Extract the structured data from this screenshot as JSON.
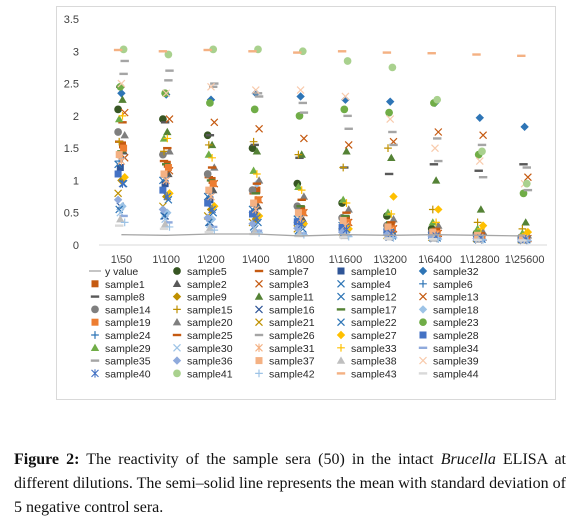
{
  "figure": {
    "caption_label": "Figure 2:",
    "caption_part1": " The reactivity of the sample sera (50) in the intact ",
    "caption_italic": "Brucella",
    "caption_part2": " ELISA at different dilutions. The semi–solid line represents the mean with standard deviation of 5 negative control sera."
  },
  "chart_data": {
    "type": "scatter",
    "title": "",
    "xlabel": "",
    "ylabel": "",
    "ylim": [
      0,
      3.5
    ],
    "yticks": [
      "0",
      "0.5",
      "1",
      "1.5",
      "2",
      "2.5",
      "3",
      "3.5"
    ],
    "grid": false,
    "legend_position": "bottom",
    "categories": [
      "1\\50",
      "1\\100",
      "1\\200",
      "1\\400",
      "1\\800",
      "1\\1600",
      "1\\3200",
      "1\\6400",
      "1\\12800",
      "1\\25600"
    ],
    "line_series": {
      "name": "y value",
      "color": "#a6a6a6",
      "values": [
        0.16,
        0.15,
        0.17,
        0.17,
        0.14,
        0.16,
        0.15,
        0.16,
        0.15,
        0.14
      ]
    },
    "series": [
      {
        "name": "sample5",
        "color": "#375623",
        "marker": "circle",
        "values": [
          2.1,
          1.95,
          1.7,
          1.5,
          0.95,
          0.65,
          0.45,
          0.25,
          0.18,
          0.12
        ]
      },
      {
        "name": "sample7",
        "color": "#c55a11",
        "marker": "dash",
        "values": [
          1.6,
          1.3,
          1.05,
          0.8,
          0.6,
          0.4,
          0.3,
          0.2,
          0.15,
          0.1
        ]
      },
      {
        "name": "sample10",
        "color": "#2f5597",
        "marker": "square",
        "values": [
          1.2,
          0.95,
          0.7,
          0.5,
          0.35,
          0.25,
          0.18,
          0.13,
          0.1,
          0.08
        ]
      },
      {
        "name": "sample32",
        "color": "#2e75b6",
        "marker": "diamond",
        "values": [
          2.35,
          2.33,
          2.25,
          2.35,
          2.3,
          2.25,
          2.22,
          2.2,
          1.97,
          1.83
        ]
      },
      {
        "name": "sample1",
        "color": "#c55a11",
        "marker": "square",
        "values": [
          1.55,
          1.25,
          1.0,
          0.85,
          0.55,
          0.4,
          0.28,
          0.2,
          0.14,
          0.1
        ]
      },
      {
        "name": "sample2",
        "color": "#595959",
        "marker": "triangle",
        "values": [
          1.45,
          1.1,
          0.85,
          0.6,
          0.4,
          0.3,
          0.2,
          0.15,
          0.12,
          0.1
        ]
      },
      {
        "name": "sample3",
        "color": "#c55a11",
        "marker": "x",
        "values": [
          1.35,
          1.15,
          0.95,
          0.7,
          0.5,
          0.35,
          0.25,
          0.18,
          0.12,
          0.1
        ]
      },
      {
        "name": "sample4",
        "color": "#2e75b6",
        "marker": "x",
        "values": [
          1.25,
          1.0,
          0.75,
          0.55,
          0.4,
          0.3,
          0.2,
          0.15,
          0.12,
          0.1
        ]
      },
      {
        "name": "sample6",
        "color": "#2e75b6",
        "marker": "plus",
        "values": [
          1.3,
          1.05,
          0.8,
          0.6,
          0.45,
          0.3,
          0.22,
          0.16,
          0.12,
          0.1
        ]
      },
      {
        "name": "sample8",
        "color": "#595959",
        "marker": "dash",
        "values": [
          2.45,
          1.9,
          1.7,
          1.55,
          1.35,
          1.2,
          1.1,
          1.25,
          1.15,
          1.25
        ]
      },
      {
        "name": "sample9",
        "color": "#bf9000",
        "marker": "diamond",
        "values": [
          1.0,
          0.75,
          0.55,
          0.4,
          0.3,
          0.22,
          0.16,
          0.12,
          0.1,
          0.08
        ]
      },
      {
        "name": "sample11",
        "color": "#548235",
        "marker": "triangle",
        "values": [
          2.25,
          1.75,
          1.55,
          1.45,
          1.4,
          1.45,
          1.35,
          1.0,
          0.55,
          0.35
        ]
      },
      {
        "name": "sample12",
        "color": "#2e75b6",
        "marker": "x",
        "values": [
          0.95,
          0.7,
          0.5,
          0.35,
          0.25,
          0.18,
          0.14,
          0.11,
          0.09,
          0.08
        ]
      },
      {
        "name": "sample13",
        "color": "#c55a11",
        "marker": "x",
        "values": [
          2.05,
          1.95,
          1.9,
          1.8,
          1.65,
          1.55,
          1.6,
          1.75,
          1.7,
          1.05
        ]
      },
      {
        "name": "sample14",
        "color": "#7f7f7f",
        "marker": "circle",
        "values": [
          1.75,
          1.4,
          1.1,
          0.85,
          0.6,
          0.42,
          0.3,
          0.2,
          0.15,
          0.1
        ]
      },
      {
        "name": "sample15",
        "color": "#bf9000",
        "marker": "plus",
        "values": [
          1.6,
          1.45,
          1.55,
          1.6,
          1.4,
          1.2,
          1.5,
          0.55,
          0.35,
          0.25
        ]
      },
      {
        "name": "sample16",
        "color": "#2f5597",
        "marker": "x",
        "values": [
          0.6,
          0.45,
          0.35,
          0.25,
          0.2,
          0.15,
          0.12,
          0.1,
          0.08,
          0.07
        ]
      },
      {
        "name": "sample17",
        "color": "#548235",
        "marker": "dash",
        "values": [
          1.45,
          1.25,
          1.0,
          0.8,
          0.6,
          0.45,
          0.35,
          0.25,
          0.18,
          0.12
        ]
      },
      {
        "name": "sample18",
        "color": "#9dc3e6",
        "marker": "diamond",
        "values": [
          0.6,
          0.5,
          0.4,
          0.95,
          0.3,
          0.2,
          0.15,
          0.12,
          0.1,
          0.08
        ]
      },
      {
        "name": "sample19",
        "color": "#ed7d31",
        "marker": "square",
        "values": [
          1.5,
          1.2,
          0.95,
          0.7,
          0.5,
          0.35,
          0.25,
          0.18,
          0.13,
          0.1
        ]
      },
      {
        "name": "sample20",
        "color": "#7f7f7f",
        "marker": "triangle",
        "values": [
          1.7,
          1.45,
          1.2,
          1.0,
          0.75,
          0.55,
          0.4,
          0.3,
          0.2,
          0.15
        ]
      },
      {
        "name": "sample21",
        "color": "#bf9000",
        "marker": "x",
        "values": [
          0.8,
          0.6,
          0.45,
          0.35,
          0.25,
          0.2,
          0.15,
          0.12,
          0.1,
          0.08
        ]
      },
      {
        "name": "sample22",
        "color": "#2e75b6",
        "marker": "x",
        "values": [
          0.55,
          0.45,
          0.35,
          0.28,
          0.22,
          0.18,
          0.14,
          0.11,
          0.09,
          0.08
        ]
      },
      {
        "name": "sample23",
        "color": "#70ad47",
        "marker": "circle",
        "values": [
          2.45,
          2.35,
          2.2,
          2.1,
          2.0,
          2.1,
          2.05,
          2.2,
          1.4,
          0.8
        ]
      },
      {
        "name": "sample24",
        "color": "#2e75b6",
        "marker": "plus",
        "values": [
          1.35,
          1.05,
          0.8,
          0.6,
          0.45,
          0.32,
          0.24,
          0.17,
          0.13,
          0.1
        ]
      },
      {
        "name": "sample25",
        "color": "#c55a11",
        "marker": "dash",
        "values": [
          1.9,
          1.5,
          1.2,
          0.95,
          0.7,
          0.5,
          0.35,
          0.25,
          0.18,
          0.12
        ]
      },
      {
        "name": "sample26",
        "color": "#a5a5a5",
        "marker": "dash",
        "values": [
          2.65,
          2.55,
          2.45,
          2.35,
          2.2,
          2.0,
          1.75,
          1.65,
          1.55,
          1.2
        ]
      },
      {
        "name": "sample27",
        "color": "#ffc000",
        "marker": "diamond",
        "values": [
          1.05,
          0.8,
          0.6,
          0.45,
          0.33,
          0.25,
          0.75,
          0.55,
          0.3,
          0.2
        ]
      },
      {
        "name": "sample28",
        "color": "#4472c4",
        "marker": "square",
        "values": [
          1.1,
          0.85,
          0.65,
          0.48,
          0.36,
          0.27,
          0.2,
          0.15,
          0.11,
          0.09
        ]
      },
      {
        "name": "sample29",
        "color": "#70ad47",
        "marker": "triangle",
        "values": [
          1.95,
          1.65,
          1.4,
          1.15,
          0.9,
          0.7,
          0.5,
          0.35,
          0.25,
          0.18
        ]
      },
      {
        "name": "sample30",
        "color": "#9dc3e6",
        "marker": "x",
        "values": [
          0.5,
          0.4,
          0.32,
          0.26,
          0.21,
          0.17,
          0.14,
          0.12,
          0.1,
          0.08
        ]
      },
      {
        "name": "sample31",
        "color": "#f4b183",
        "marker": "star",
        "values": [
          1.3,
          1.0,
          0.75,
          0.55,
          0.4,
          0.3,
          0.22,
          0.16,
          0.12,
          0.1
        ]
      },
      {
        "name": "sample33",
        "color": "#ffc000",
        "marker": "plus",
        "values": [
          2.0,
          1.65,
          1.35,
          1.1,
          0.85,
          0.65,
          0.48,
          0.35,
          0.25,
          0.18
        ]
      },
      {
        "name": "sample34",
        "color": "#8faadc",
        "marker": "dash",
        "values": [
          0.45,
          0.35,
          0.28,
          0.22,
          0.18,
          0.15,
          0.12,
          0.1,
          0.08,
          0.07
        ]
      },
      {
        "name": "sample35",
        "color": "#a5a5a5",
        "marker": "dash",
        "values": [
          2.85,
          2.7,
          2.5,
          2.3,
          2.05,
          1.8,
          1.55,
          1.3,
          1.05,
          0.85
        ]
      },
      {
        "name": "sample36",
        "color": "#8faadc",
        "marker": "diamond",
        "values": [
          0.7,
          0.55,
          0.42,
          0.33,
          0.26,
          0.2,
          0.16,
          0.13,
          0.1,
          0.08
        ]
      },
      {
        "name": "sample37",
        "color": "#f4b183",
        "marker": "square",
        "values": [
          1.4,
          1.1,
          0.85,
          0.65,
          0.5,
          0.38,
          0.28,
          0.2,
          0.15,
          0.11
        ]
      },
      {
        "name": "sample38",
        "color": "#bfbfbf",
        "marker": "triangle",
        "values": [
          0.4,
          0.32,
          0.26,
          0.21,
          0.17,
          0.14,
          0.12,
          0.1,
          0.08,
          0.07
        ]
      },
      {
        "name": "sample39",
        "color": "#f8cbad",
        "marker": "x",
        "values": [
          2.5,
          2.35,
          2.45,
          2.4,
          2.4,
          2.3,
          1.95,
          1.5,
          1.3,
          0.95
        ]
      },
      {
        "name": "sample40",
        "color": "#4472c4",
        "marker": "star",
        "values": [
          0.95,
          0.75,
          0.55,
          0.42,
          0.32,
          0.24,
          0.18,
          0.14,
          0.11,
          0.09
        ]
      },
      {
        "name": "sample41",
        "color": "#a9d18e",
        "marker": "circle",
        "values": [
          3.03,
          2.95,
          3.03,
          3.03,
          3.0,
          2.85,
          2.75,
          2.25,
          1.45,
          0.95
        ]
      },
      {
        "name": "sample42",
        "color": "#9dc3e6",
        "marker": "plus",
        "values": [
          0.35,
          0.28,
          0.23,
          0.19,
          0.16,
          0.13,
          0.11,
          0.09,
          0.08,
          0.07
        ]
      },
      {
        "name": "sample43",
        "color": "#f4b183",
        "marker": "dash",
        "values": [
          3.02,
          3.0,
          3.02,
          3.0,
          2.98,
          3.0,
          2.98,
          2.97,
          2.95,
          2.93
        ]
      },
      {
        "name": "sample44",
        "color": "#d9d9d9",
        "marker": "dash",
        "values": [
          0.3,
          0.25,
          0.2,
          0.17,
          0.14,
          0.12,
          0.1,
          0.09,
          0.08,
          0.07
        ]
      }
    ]
  }
}
